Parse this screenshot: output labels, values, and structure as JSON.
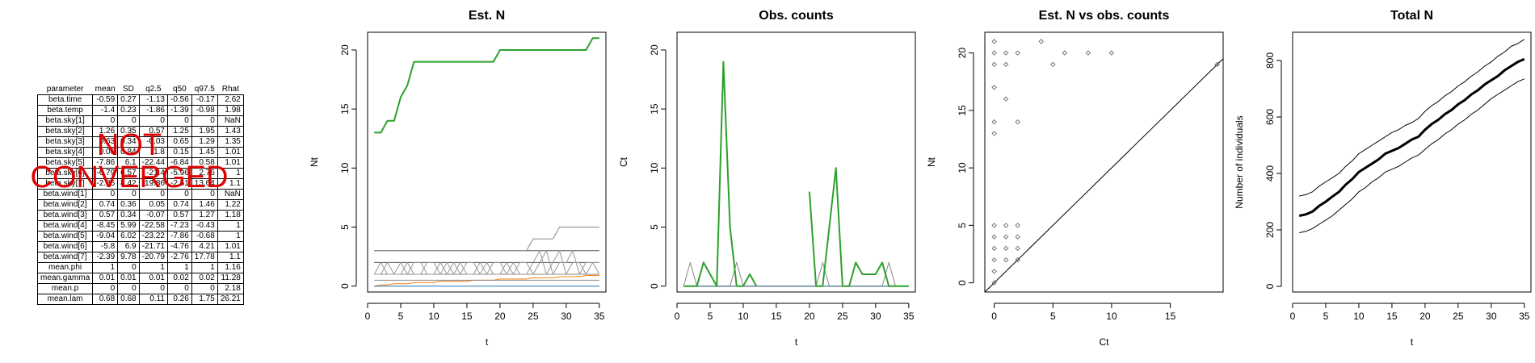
{
  "table": {
    "headers": [
      "parameter",
      "mean",
      "SD",
      "q2.5",
      "q50",
      "q97.5",
      "Rhat"
    ],
    "rows": [
      [
        "beta.time",
        "-0.59",
        "0.27",
        "-1.13",
        "-0.56",
        "-0.17",
        "2.62"
      ],
      [
        "beta.temp",
        "-1.4",
        "0.23",
        "-1.86",
        "-1.39",
        "-0.98",
        "1.98"
      ],
      [
        "beta.sky[1]",
        "0",
        "0",
        "0",
        "0",
        "0",
        "NaN"
      ],
      [
        "beta.sky[2]",
        "1.26",
        "0.35",
        "0.57",
        "1.25",
        "1.95",
        "1.43"
      ],
      [
        "beta.sky[3]",
        "0.63",
        "0.34",
        "-0.03",
        "0.65",
        "1.29",
        "1.35"
      ],
      [
        "beta.sky[4]",
        "0.06",
        "0.84",
        "-1.8",
        "0.15",
        "1.45",
        "1.01"
      ],
      [
        "beta.sky[5]",
        "-7.86",
        "6.1",
        "-22.44",
        "-6.84",
        "0.58",
        "1.01"
      ],
      [
        "beta.sky[6]",
        "-6.79",
        "6.57",
        "-21.4",
        "-5.96",
        "2.76",
        "1"
      ],
      [
        "beta.sky[7]",
        "-2.86",
        "8.42",
        "-19.86",
        "-2.51",
        "13.64",
        "1.1"
      ],
      [
        "beta.wind[1]",
        "0",
        "0",
        "0",
        "0",
        "0",
        "NaN"
      ],
      [
        "beta.wind[2]",
        "0.74",
        "0.36",
        "0.05",
        "0.74",
        "1.46",
        "1.22"
      ],
      [
        "beta.wind[3]",
        "0.57",
        "0.34",
        "-0.07",
        "0.57",
        "1.27",
        "1.18"
      ],
      [
        "beta.wind[4]",
        "-8.45",
        "5.99",
        "-22.58",
        "-7.23",
        "-0.43",
        "1"
      ],
      [
        "beta.wind[5]",
        "-9.04",
        "6.02",
        "-23.22",
        "-7.86",
        "-0.68",
        "1"
      ],
      [
        "beta.wind[6]",
        "-5.8",
        "6.9",
        "-21.71",
        "-4.76",
        "4.21",
        "1.01"
      ],
      [
        "beta.wind[7]",
        "-2.39",
        "9.78",
        "-20.79",
        "-2.76",
        "17.78",
        "1.1"
      ],
      [
        "mean.phi",
        "1",
        "0",
        "1",
        "1",
        "1",
        "1.16"
      ],
      [
        "mean.gamma",
        "0.01",
        "0.01",
        "0.01",
        "0.02",
        "0.02",
        "11.28"
      ],
      [
        "mean.p",
        "0",
        "0",
        "0",
        "0",
        "0",
        "2.18"
      ],
      [
        "mean.lam",
        "0.68",
        "0.68",
        "0.11",
        "0.26",
        "1.75",
        "26.21"
      ]
    ],
    "stamp_line1": "NOT",
    "stamp_line2": "CONVERGED",
    "stamp_color": "#e00000"
  },
  "chart_data": [
    {
      "type": "line",
      "title": "Est. N",
      "xlabel": "t",
      "ylabel": "Nt",
      "xlim": [
        0,
        36
      ],
      "ylim": [
        -0.5,
        21.5
      ],
      "xticks": [
        0,
        5,
        10,
        15,
        20,
        25,
        30,
        35
      ],
      "yticks": [
        0,
        5,
        10,
        15,
        20
      ],
      "x": [
        1,
        2,
        3,
        4,
        5,
        6,
        7,
        8,
        9,
        10,
        11,
        12,
        13,
        14,
        15,
        16,
        17,
        18,
        19,
        20,
        21,
        22,
        23,
        24,
        25,
        26,
        27,
        28,
        29,
        30,
        31,
        32,
        33,
        34,
        35
      ],
      "series": [
        {
          "color": "#2ca02c",
          "highlight": true,
          "values": [
            13,
            13,
            14,
            14,
            16,
            17,
            19,
            19,
            19,
            19,
            19,
            19,
            19,
            19,
            19,
            19,
            19,
            19,
            19,
            20,
            20,
            20,
            20,
            20,
            20,
            20,
            20,
            20,
            20,
            20,
            20,
            20,
            20,
            21,
            21
          ]
        },
        {
          "color": "#ff7f0e",
          "values": [
            0,
            0.1,
            0.1,
            0.2,
            0.2,
            0.2,
            0.3,
            0.3,
            0.3,
            0.3,
            0.4,
            0.4,
            0.4,
            0.4,
            0.4,
            0.5,
            0.5,
            0.5,
            0.5,
            0.6,
            0.6,
            0.6,
            0.6,
            0.6,
            0.7,
            0.7,
            0.7,
            0.7,
            0.8,
            0.8,
            0.8,
            0.8,
            0.9,
            0.9,
            0.9
          ]
        },
        {
          "color": "#1f77b4",
          "values": [
            0,
            0,
            0,
            0,
            0,
            0,
            0,
            0,
            0,
            0,
            0,
            0,
            0,
            0,
            0,
            0,
            0,
            0,
            0,
            0,
            0,
            0,
            0,
            0,
            0,
            0,
            0,
            0,
            0,
            0,
            0,
            0,
            0,
            0,
            0
          ]
        },
        {
          "color": "#555555",
          "values": [
            3,
            3,
            3,
            3,
            3,
            3,
            3,
            3,
            3,
            3,
            3,
            3,
            3,
            3,
            3,
            3,
            3,
            3,
            3,
            3,
            3,
            3,
            3,
            3,
            3,
            3,
            3,
            3,
            3,
            3,
            3,
            3,
            3,
            3,
            3
          ]
        },
        {
          "color": "#555555",
          "values": [
            2,
            2,
            2,
            2,
            2,
            2,
            2,
            2,
            2,
            2,
            2,
            2,
            2,
            2,
            2,
            2,
            2,
            2,
            2,
            2,
            2,
            2,
            2,
            2,
            2,
            2,
            2,
            2,
            2,
            2,
            2,
            2,
            2,
            2,
            2
          ]
        },
        {
          "color": "#888888",
          "values": [
            1,
            1,
            1,
            1,
            1,
            1,
            1,
            1,
            1,
            1,
            1,
            1,
            1,
            1,
            1,
            1,
            1,
            1,
            1,
            1,
            1,
            1,
            1,
            1,
            1,
            1,
            1,
            1,
            1,
            1,
            1,
            1,
            1,
            1,
            1
          ]
        },
        {
          "color": "#888888",
          "values": [
            0.5,
            0.5,
            0.5,
            0.5,
            0.5,
            0.5,
            0.5,
            0.5,
            0.5,
            0.5,
            0.5,
            0.5,
            0.5,
            0.5,
            0.5,
            0.5,
            0.5,
            0.5,
            0.5,
            0.5,
            0.5,
            0.5,
            0.5,
            0.5,
            0.5,
            0.5,
            0.5,
            0.5,
            0.5,
            0.5,
            0.5,
            0.5,
            0.5,
            0.5,
            0.5
          ]
        },
        {
          "color": "#888888",
          "values": [
            3,
            3,
            3,
            3,
            3,
            3,
            3,
            3,
            3,
            3,
            3,
            3,
            3,
            3,
            3,
            3,
            3,
            3,
            3,
            3,
            3,
            3,
            3,
            3,
            4,
            4,
            4,
            4,
            5,
            5,
            5,
            5,
            5,
            5,
            5
          ]
        },
        {
          "color": "#999999",
          "values": [
            1,
            2,
            1,
            1,
            2,
            1,
            2,
            2,
            1,
            1,
            2,
            1,
            2,
            1,
            2,
            2,
            1,
            2,
            1,
            1,
            2,
            1,
            2,
            2,
            1,
            2,
            3,
            1,
            2,
            2,
            3,
            1,
            2,
            2,
            1
          ]
        },
        {
          "color": "#999999",
          "values": [
            1,
            1,
            2,
            1,
            1,
            2,
            1,
            1,
            2,
            2,
            1,
            2,
            1,
            2,
            1,
            1,
            2,
            1,
            2,
            2,
            1,
            2,
            1,
            1,
            2,
            3,
            1,
            2,
            3,
            1,
            2,
            2,
            1,
            2,
            2
          ]
        }
      ]
    },
    {
      "type": "line",
      "title": "Obs. counts",
      "xlabel": "t",
      "ylabel": "Ct",
      "xlim": [
        0,
        36
      ],
      "ylim": [
        -0.5,
        21.5
      ],
      "xticks": [
        0,
        5,
        10,
        15,
        20,
        25,
        30,
        35
      ],
      "yticks": [
        0,
        5,
        10,
        15,
        20
      ],
      "x": [
        1,
        2,
        3,
        4,
        5,
        6,
        7,
        8,
        9,
        10,
        11,
        12,
        13,
        14,
        15,
        16,
        17,
        18,
        19,
        20,
        21,
        22,
        23,
        24,
        25,
        26,
        27,
        28,
        29,
        30,
        31,
        32,
        33,
        34,
        35
      ],
      "series": [
        {
          "color": "#2ca02c",
          "highlight": true,
          "values": [
            0,
            0,
            0,
            2,
            1,
            0,
            19,
            5,
            0,
            0,
            1,
            0,
            null,
            null,
            null,
            null,
            null,
            null,
            null,
            8,
            0,
            0,
            5,
            10,
            0,
            0,
            2,
            1,
            1,
            1,
            2,
            0,
            0,
            0,
            0
          ]
        },
        {
          "color": "#888888",
          "values": [
            0,
            2,
            0,
            0,
            0,
            0,
            0,
            0,
            2,
            0,
            0,
            0,
            0,
            0,
            0,
            0,
            0,
            0,
            0,
            0,
            0,
            2,
            0,
            0,
            0,
            0,
            0,
            0,
            0,
            0,
            0,
            2,
            0,
            0,
            0
          ]
        },
        {
          "color": "#ff7f0e",
          "values": [
            0,
            0,
            0,
            0,
            0,
            0,
            0,
            0,
            0,
            0,
            0,
            0,
            0,
            0,
            0,
            0,
            0,
            0,
            0,
            0,
            0,
            0,
            0,
            0,
            0,
            0,
            0,
            0,
            0,
            0,
            0,
            0,
            0,
            0,
            0
          ]
        },
        {
          "color": "#1f77b4",
          "values": [
            0,
            0,
            0,
            0,
            0,
            0,
            0,
            0,
            0,
            0,
            0,
            0,
            0,
            0,
            0,
            0,
            0,
            0,
            0,
            0,
            0,
            0,
            0,
            0,
            0,
            0,
            0,
            0,
            0,
            0,
            0,
            0,
            0,
            0,
            0
          ]
        }
      ]
    },
    {
      "type": "scatter",
      "title": "Est. N vs obs. counts",
      "xlabel": "Ct",
      "ylabel": "Nt",
      "xlim": [
        -0.8,
        19.5
      ],
      "ylim": [
        -0.8,
        21.8
      ],
      "xticks": [
        0,
        5,
        10,
        15
      ],
      "yticks": [
        0,
        5,
        10,
        15,
        20
      ],
      "reference_line": "y = x",
      "points": [
        [
          0,
          21
        ],
        [
          0,
          20
        ],
        [
          0,
          19
        ],
        [
          0,
          17
        ],
        [
          0,
          14
        ],
        [
          0,
          13
        ],
        [
          0,
          5
        ],
        [
          0,
          4
        ],
        [
          0,
          3
        ],
        [
          0,
          2
        ],
        [
          0,
          1
        ],
        [
          0,
          0
        ],
        [
          1,
          20
        ],
        [
          1,
          19
        ],
        [
          1,
          16
        ],
        [
          1,
          5
        ],
        [
          1,
          4
        ],
        [
          1,
          3
        ],
        [
          1,
          2
        ],
        [
          2,
          20
        ],
        [
          2,
          14
        ],
        [
          2,
          5
        ],
        [
          2,
          4
        ],
        [
          2,
          3
        ],
        [
          2,
          2
        ],
        [
          4,
          21
        ],
        [
          5,
          19
        ],
        [
          6,
          20
        ],
        [
          8,
          20
        ],
        [
          10,
          20
        ],
        [
          19,
          19
        ]
      ]
    },
    {
      "type": "line",
      "title": "Total N",
      "xlabel": "t",
      "ylabel": "Number of individuals",
      "xlim": [
        0,
        36
      ],
      "ylim": [
        -20,
        900
      ],
      "xticks": [
        0,
        5,
        10,
        15,
        20,
        25,
        30,
        35
      ],
      "yticks": [
        0,
        200,
        400,
        600,
        800
      ],
      "x": [
        1,
        2,
        3,
        4,
        5,
        6,
        7,
        8,
        9,
        10,
        11,
        12,
        13,
        14,
        15,
        16,
        17,
        18,
        19,
        20,
        21,
        22,
        23,
        24,
        25,
        26,
        27,
        28,
        29,
        30,
        31,
        32,
        33,
        34,
        35
      ],
      "series": [
        {
          "name": "mean",
          "color": "#000000",
          "width": 3,
          "values": [
            250,
            255,
            265,
            285,
            300,
            318,
            335,
            360,
            380,
            405,
            420,
            435,
            450,
            470,
            480,
            490,
            505,
            520,
            530,
            555,
            575,
            590,
            610,
            625,
            645,
            660,
            680,
            695,
            715,
            730,
            745,
            765,
            780,
            795,
            805
          ]
        },
        {
          "name": "upper",
          "color": "#000000",
          "width": 1,
          "values": [
            320,
            325,
            335,
            355,
            370,
            385,
            400,
            425,
            445,
            470,
            485,
            500,
            515,
            530,
            545,
            555,
            570,
            580,
            595,
            620,
            640,
            655,
            675,
            690,
            710,
            725,
            745,
            760,
            780,
            795,
            815,
            830,
            850,
            860,
            875
          ]
        },
        {
          "name": "lower",
          "color": "#000000",
          "width": 1,
          "values": [
            190,
            195,
            205,
            220,
            235,
            250,
            270,
            290,
            310,
            335,
            350,
            370,
            385,
            405,
            415,
            425,
            440,
            455,
            465,
            485,
            505,
            520,
            540,
            555,
            575,
            590,
            610,
            625,
            645,
            665,
            680,
            695,
            710,
            725,
            735
          ]
        }
      ]
    }
  ]
}
